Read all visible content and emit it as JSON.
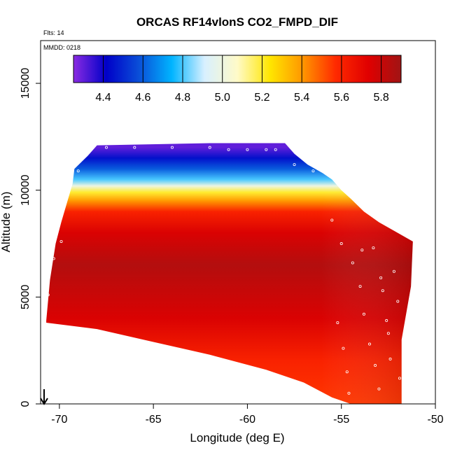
{
  "chart_data": {
    "type": "heatmap",
    "title": "ORCAS RF14vlonS CO2_FMPD_DIF",
    "annotations": {
      "flights": "Flts: 14",
      "date": "MMDD: 0218"
    },
    "xlabel": "Longitude (deg E)",
    "ylabel": "Altitude (m)",
    "xlim": [
      -71,
      -50
    ],
    "ylim": [
      0,
      17000
    ],
    "x_ticks": [
      -70,
      -65,
      -60,
      -55,
      -50
    ],
    "x_tick_labels": [
      "-70",
      "-65",
      "-60",
      "-55",
      "-50"
    ],
    "y_ticks": [
      0,
      5000,
      10000,
      15000
    ],
    "y_tick_labels": [
      "0",
      "5000",
      "10000",
      "15000"
    ],
    "colorbar": {
      "range": [
        4.25,
        5.9
      ],
      "ticks": [
        4.4,
        4.6,
        4.8,
        5.0,
        5.2,
        5.4,
        5.6,
        5.8
      ],
      "tick_labels": [
        "4.4",
        "4.6",
        "4.8",
        "5.0",
        "5.2",
        "5.4",
        "5.6",
        "5.8"
      ],
      "colors": [
        "#8a2be2",
        "#0000c8",
        "#0a4fd8",
        "#00b4ff",
        "#d8f0ff",
        "#fffac8",
        "#ffe600",
        "#ff9600",
        "#ff2a00",
        "#e00000",
        "#a01414"
      ]
    },
    "field_envelope": {
      "description": "Curtain of interpolated CO2_FMPD_DIF values vs longitude and altitude",
      "top_boundary": [
        [
          -70.7,
          3900
        ],
        [
          -70.5,
          5800
        ],
        [
          -70.2,
          7500
        ],
        [
          -69.9,
          8500
        ],
        [
          -69.6,
          9400
        ],
        [
          -69.3,
          10300
        ],
        [
          -69.2,
          11000
        ],
        [
          -68.5,
          11600
        ],
        [
          -68.0,
          12100
        ],
        [
          -62.0,
          12200
        ],
        [
          -58.0,
          12200
        ],
        [
          -57.5,
          11700
        ],
        [
          -56.8,
          11200
        ],
        [
          -56.0,
          10800
        ],
        [
          -55.5,
          10500
        ],
        [
          -55.0,
          10000
        ],
        [
          -54.5,
          9600
        ],
        [
          -53.8,
          9000
        ],
        [
          -53.0,
          8500
        ],
        [
          -52.0,
          8000
        ],
        [
          -51.2,
          7600
        ]
      ],
      "bottom_boundary": [
        [
          -70.7,
          3800
        ],
        [
          -68.0,
          3500
        ],
        [
          -65.0,
          2900
        ],
        [
          -62.0,
          2300
        ],
        [
          -59.0,
          1600
        ],
        [
          -57.0,
          1000
        ],
        [
          -55.5,
          300
        ],
        [
          -54.5,
          0
        ],
        [
          -51.8,
          0
        ],
        [
          -51.8,
          3000
        ],
        [
          -51.3,
          5500
        ],
        [
          -51.2,
          7600
        ]
      ],
      "value_by_altitude": [
        [
          12000,
          4.3
        ],
        [
          11500,
          4.45
        ],
        [
          11000,
          4.6
        ],
        [
          10500,
          4.8
        ],
        [
          10200,
          5.0
        ],
        [
          9900,
          5.2
        ],
        [
          9500,
          5.4
        ],
        [
          9000,
          5.6
        ],
        [
          8000,
          5.75
        ],
        [
          6500,
          5.85
        ],
        [
          4000,
          5.75
        ],
        [
          2000,
          5.6
        ],
        [
          0,
          5.55
        ]
      ]
    },
    "sample_points": [
      [
        -70.6,
        5100
      ],
      [
        -70.3,
        6800
      ],
      [
        -69.9,
        7600
      ],
      [
        -69.0,
        10900
      ],
      [
        -67.5,
        12000
      ],
      [
        -66.0,
        12000
      ],
      [
        -64.0,
        12000
      ],
      [
        -62.0,
        12000
      ],
      [
        -61.0,
        11900
      ],
      [
        -60.0,
        11900
      ],
      [
        -59.0,
        11900
      ],
      [
        -58.5,
        11900
      ],
      [
        -57.5,
        11200
      ],
      [
        -56.5,
        10900
      ],
      [
        -55.5,
        8600
      ],
      [
        -55.0,
        7500
      ],
      [
        -54.4,
        6600
      ],
      [
        -54.0,
        5500
      ],
      [
        -53.8,
        4200
      ],
      [
        -53.5,
        2800
      ],
      [
        -53.2,
        1800
      ],
      [
        -53.0,
        700
      ],
      [
        -52.8,
        5300
      ],
      [
        -52.6,
        3900
      ],
      [
        -52.4,
        2100
      ],
      [
        -52.2,
        6200
      ],
      [
        -52.0,
        4800
      ],
      [
        -51.9,
        1200
      ],
      [
        -55.2,
        3800
      ],
      [
        -54.9,
        2600
      ],
      [
        -54.7,
        1500
      ],
      [
        -54.6,
        500
      ],
      [
        -53.9,
        7200
      ],
      [
        -53.3,
        7300
      ],
      [
        -52.9,
        5900
      ],
      [
        -52.5,
        3300
      ]
    ]
  }
}
